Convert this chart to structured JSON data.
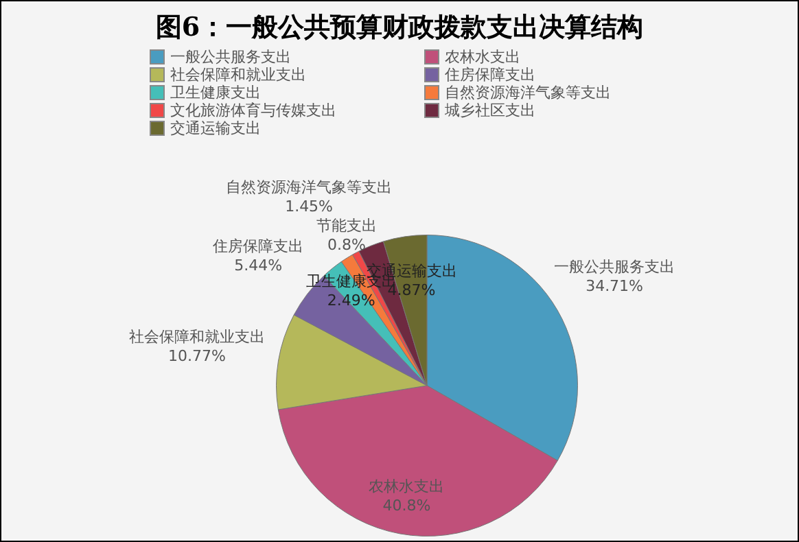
{
  "chart_data": {
    "type": "pie",
    "title": "图6：一般公共预算财政拨款支出决算结构",
    "categories": [
      "一般公共服务支出",
      "农林水支出",
      "社会保障和就业支出",
      "住房保障支出",
      "卫生健康支出",
      "自然资源海洋气象等支出",
      "文化旅游体育与传媒支出",
      "城乡社区支出",
      "交通运输支出"
    ],
    "values": [
      34.71,
      40.8,
      10.77,
      5.44,
      2.49,
      1.45,
      0.8,
      2.9,
      4.87
    ],
    "colors": [
      "#4a9cc0",
      "#c0507a",
      "#b5b85a",
      "#7562a0",
      "#45bfb8",
      "#f57a3c",
      "#f04848",
      "#6e2a40",
      "#6b6a30"
    ],
    "value_labels": [
      "34.71%",
      "40.8%",
      "10.77%",
      "5.44%",
      "2.49%",
      "1.45%",
      "0.8%",
      null,
      "4.87%"
    ],
    "annotations": [
      {
        "text": "节能支出",
        "x": "文化旅游体育与传媒支出"
      }
    ],
    "legend": "top"
  }
}
